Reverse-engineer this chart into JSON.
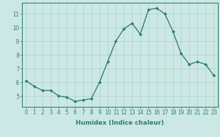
{
  "x": [
    0,
    1,
    2,
    3,
    4,
    5,
    6,
    7,
    8,
    9,
    10,
    11,
    12,
    13,
    14,
    15,
    16,
    17,
    18,
    19,
    20,
    21,
    22,
    23
  ],
  "y": [
    6.1,
    5.7,
    5.4,
    5.4,
    5.0,
    4.9,
    4.6,
    4.7,
    4.8,
    6.0,
    7.5,
    9.0,
    9.9,
    10.3,
    9.5,
    11.3,
    11.4,
    11.0,
    9.7,
    8.1,
    7.3,
    7.5,
    7.3,
    6.5
  ],
  "line_color": "#2e7d6e",
  "marker": "D",
  "marker_size": 2.0,
  "bg_color": "#cce8e4",
  "grid_color": "#aacfcb",
  "xlabel": "Humidex (Indice chaleur)",
  "xlabel_fontsize": 6.5,
  "tick_fontsize": 5.5,
  "ylim": [
    4.2,
    11.8
  ],
  "yticks": [
    5,
    6,
    7,
    8,
    9,
    10,
    11
  ],
  "xticks": [
    0,
    1,
    2,
    3,
    4,
    5,
    6,
    7,
    8,
    9,
    10,
    11,
    12,
    13,
    14,
    15,
    16,
    17,
    18,
    19,
    20,
    21,
    22,
    23
  ],
  "line_width": 1.0
}
